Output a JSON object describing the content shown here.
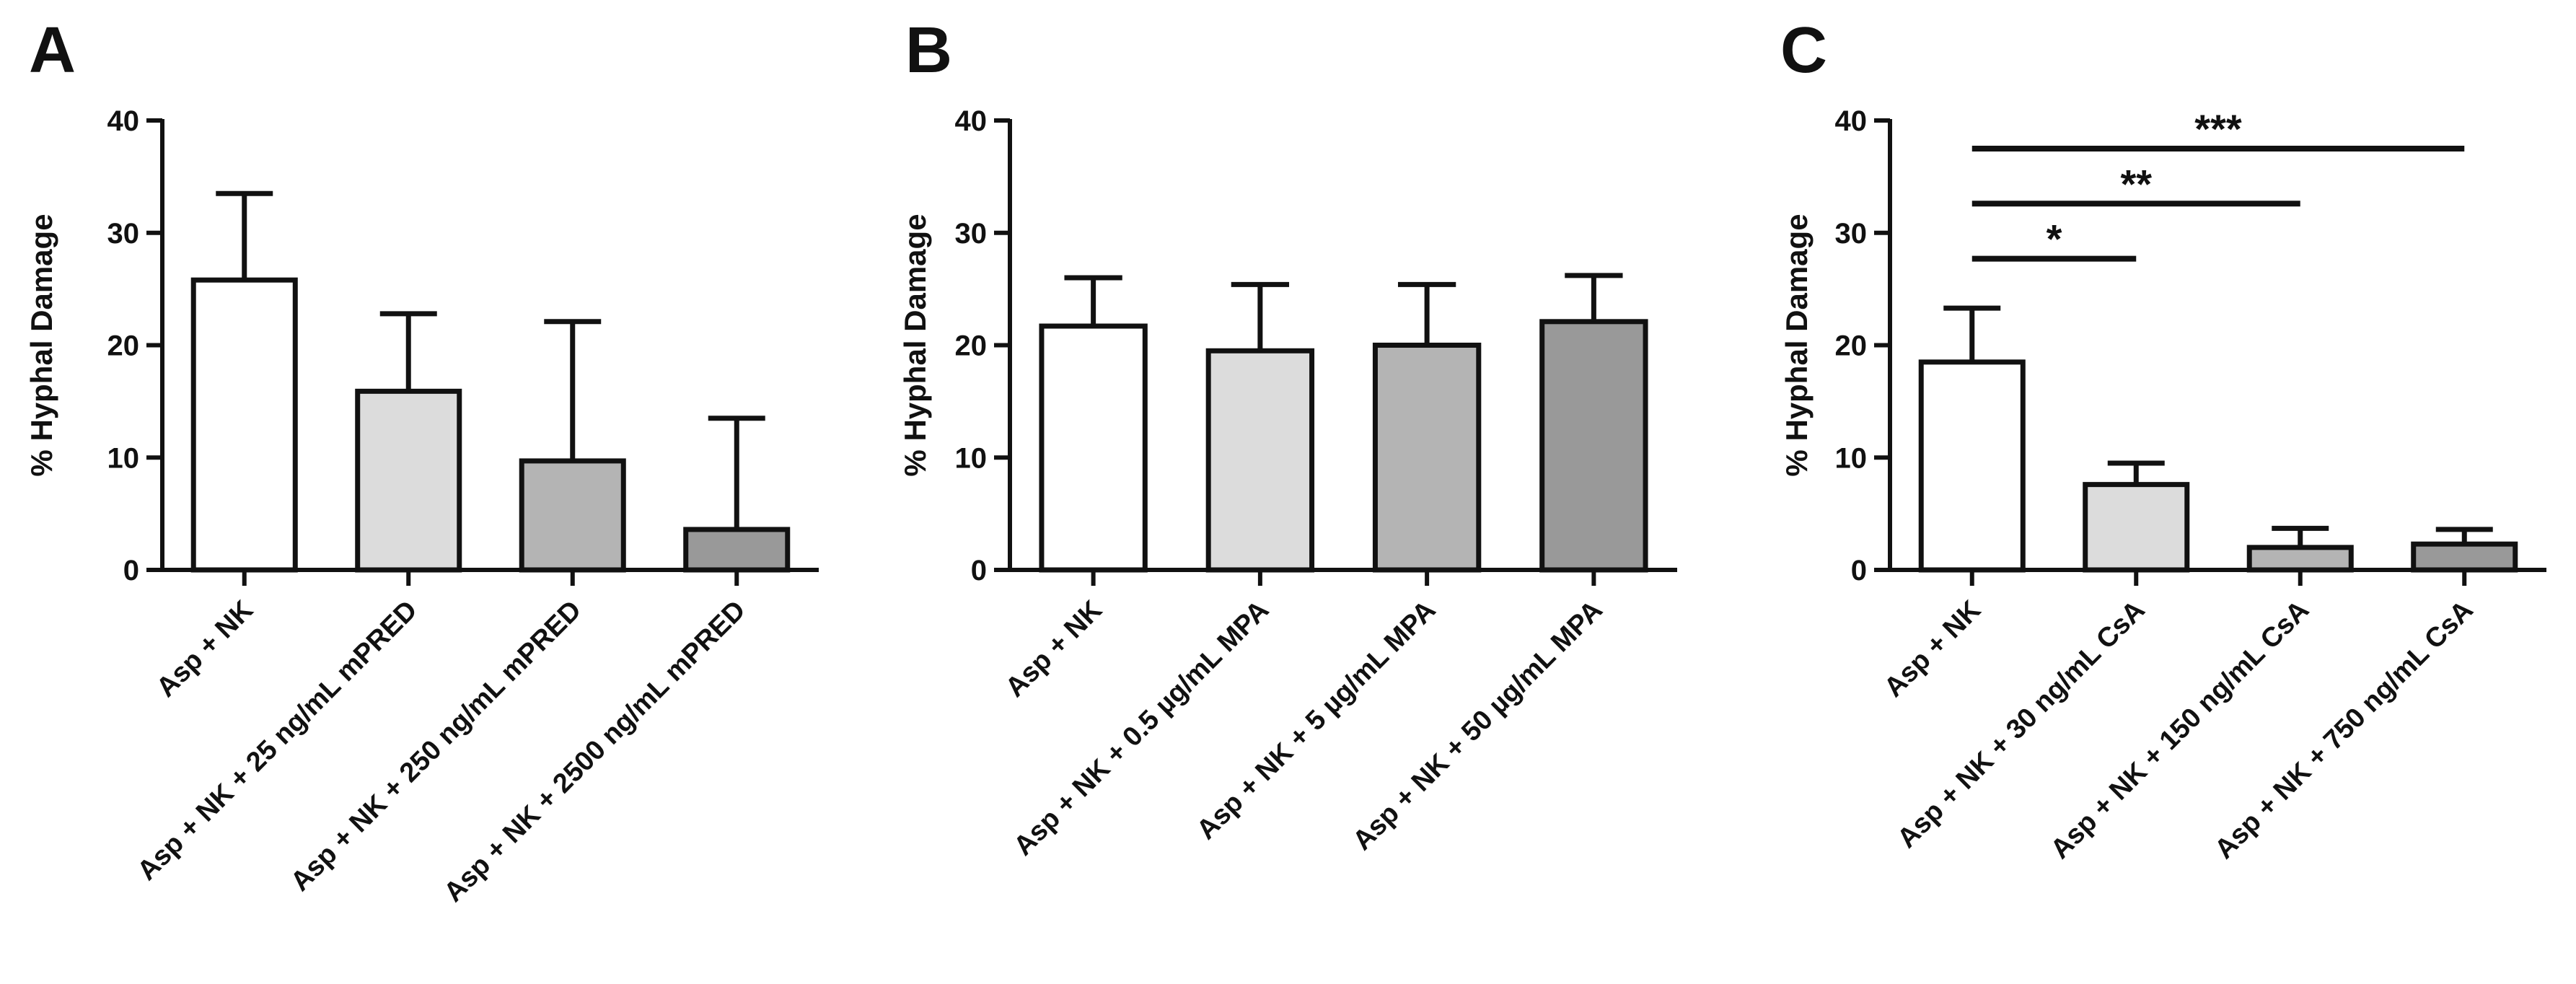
{
  "chart_data": [
    {
      "panel": "A",
      "type": "bar",
      "ylabel": "% Hyphal Damage",
      "ylim": [
        0,
        40
      ],
      "yticks": [
        0,
        10,
        20,
        30,
        40
      ],
      "categories": [
        "Asp + NK",
        "Asp + NK + 25 ng/mL mPRED",
        "Asp + NK + 250 ng/mL mPRED",
        "Asp + NK + 2500 ng/mL mPRED"
      ],
      "values": [
        25.8,
        15.9,
        9.7,
        3.6
      ],
      "errors": [
        7.7,
        6.9,
        12.4,
        9.9
      ],
      "colors": [
        "#ffffff",
        "#dcdcdc",
        "#b4b4b4",
        "#999999"
      ],
      "significance": []
    },
    {
      "panel": "B",
      "type": "bar",
      "ylabel": "% Hyphal Damage",
      "ylim": [
        0,
        40
      ],
      "yticks": [
        0,
        10,
        20,
        30,
        40
      ],
      "categories": [
        "Asp + NK",
        "Asp + NK + 0.5 µg/mL MPA",
        "Asp + NK + 5 µg/mL MPA",
        "Asp + NK + 50 µg/mL MPA"
      ],
      "values": [
        21.7,
        19.5,
        20.0,
        22.1
      ],
      "errors": [
        4.3,
        5.9,
        5.4,
        4.1
      ],
      "colors": [
        "#ffffff",
        "#dcdcdc",
        "#b4b4b4",
        "#999999"
      ],
      "significance": []
    },
    {
      "panel": "C",
      "type": "bar",
      "ylabel": "% Hyphal Damage",
      "ylim": [
        0,
        40
      ],
      "yticks": [
        0,
        10,
        20,
        30,
        40
      ],
      "categories": [
        "Asp + NK",
        "Asp + NK + 30 ng/mL CsA",
        "Asp + NK + 150 ng/mL CsA",
        "Asp + NK + 750 ng/mL CsA"
      ],
      "values": [
        18.5,
        7.6,
        2.0,
        2.3
      ],
      "errors": [
        4.8,
        1.9,
        1.7,
        1.3
      ],
      "colors": [
        "#ffffff",
        "#dcdcdc",
        "#b4b4b4",
        "#999999"
      ],
      "significance": [
        {
          "from": 0,
          "to": 1,
          "label": "*",
          "y": 27.7
        },
        {
          "from": 0,
          "to": 2,
          "label": "**",
          "y": 32.6
        },
        {
          "from": 0,
          "to": 3,
          "label": "***",
          "y": 37.5
        }
      ]
    }
  ]
}
